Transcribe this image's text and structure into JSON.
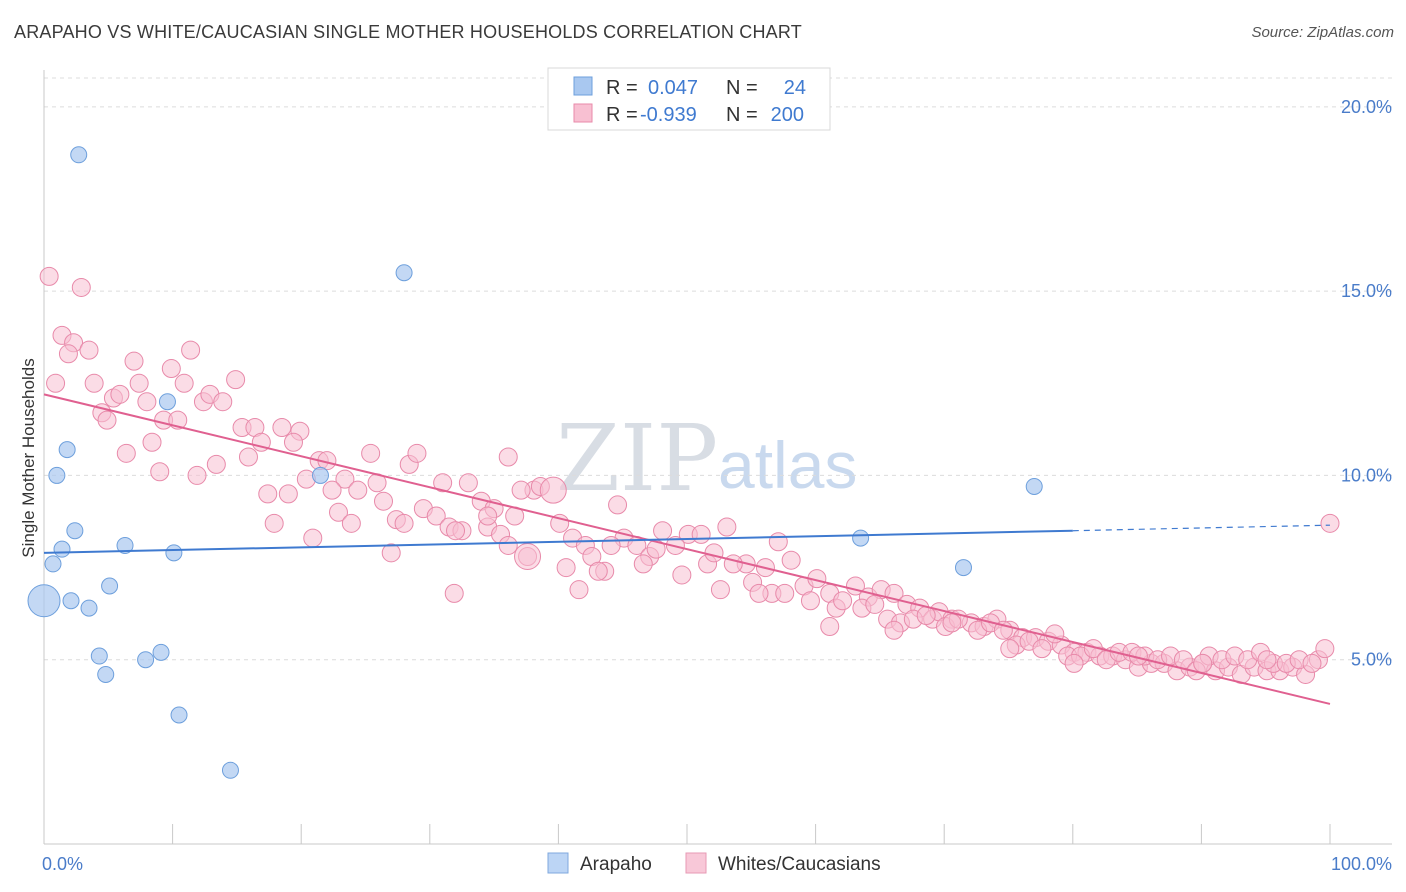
{
  "header": {
    "title": "ARAPAHO VS WHITE/CAUCASIAN SINGLE MOTHER HOUSEHOLDS CORRELATION CHART",
    "source": "Source: ZipAtlas.com"
  },
  "watermark": {
    "zip": "ZIP",
    "atlas": "atlas"
  },
  "legend": {
    "rows": [
      {
        "r_label": "R =",
        "r_value": "0.047",
        "n_label": "N =",
        "n_value": "24",
        "color": "#a9c8f0",
        "stroke": "#6d9fdc"
      },
      {
        "r_label": "R =",
        "r_value": "-0.939",
        "n_label": "N =",
        "n_value": "200",
        "color": "#f8c0d2",
        "stroke": "#e88aaa"
      }
    ]
  },
  "bottom_legend": [
    {
      "label": "Arapaho",
      "color": "#bcd5f5",
      "stroke": "#7fa8de"
    },
    {
      "label": "Whites/Caucasians",
      "color": "#f8c8d8",
      "stroke": "#e79ab4"
    }
  ],
  "chart_data": {
    "type": "scatter",
    "title": "ARAPAHO VS WHITE/CAUCASIAN SINGLE MOTHER HOUSEHOLDS CORRELATION CHART",
    "ylabel": "Single Mother Households",
    "xlabel": "",
    "xlim": [
      0,
      100
    ],
    "ylim": [
      0,
      21
    ],
    "x_tick_labels": [
      "0.0%",
      "100.0%"
    ],
    "y_ticks": [
      {
        "value": 5,
        "label": "5.0%"
      },
      {
        "value": 10,
        "label": "10.0%"
      },
      {
        "value": 15,
        "label": "15.0%"
      },
      {
        "value": 20,
        "label": "20.0%"
      }
    ],
    "grid": true,
    "series": [
      {
        "name": "Arapaho",
        "color": "#a9c8f0",
        "stroke": "#6d9fdc",
        "trend": {
          "x0": 0,
          "y0": 7.9,
          "x1": 80,
          "y1": 8.5,
          "dash_to_x": 100,
          "dash_to_y": 8.65,
          "color": "#3f7ad0"
        },
        "points": [
          [
            2.7,
            18.7,
            8
          ],
          [
            0.0,
            6.6,
            16
          ],
          [
            0.7,
            7.6,
            8
          ],
          [
            1.0,
            10.0,
            8
          ],
          [
            1.4,
            8.0,
            8
          ],
          [
            1.8,
            10.7,
            8
          ],
          [
            2.1,
            6.6,
            8
          ],
          [
            2.4,
            8.5,
            8
          ],
          [
            3.5,
            6.4,
            8
          ],
          [
            4.3,
            5.1,
            8
          ],
          [
            4.8,
            4.6,
            8
          ],
          [
            5.1,
            7.0,
            8
          ],
          [
            6.3,
            8.1,
            8
          ],
          [
            7.9,
            5.0,
            8
          ],
          [
            9.1,
            5.2,
            8
          ],
          [
            9.6,
            12.0,
            8
          ],
          [
            10.1,
            7.9,
            8
          ],
          [
            10.5,
            3.5,
            8
          ],
          [
            14.5,
            2.0,
            8
          ],
          [
            21.5,
            10.0,
            8
          ],
          [
            28.0,
            15.5,
            8
          ],
          [
            63.5,
            8.3,
            8
          ],
          [
            71.5,
            7.5,
            8
          ],
          [
            77.0,
            9.7,
            8
          ]
        ]
      },
      {
        "name": "Whites/Caucasians",
        "color": "#f8c0d2",
        "stroke": "#e88aaa",
        "trend": {
          "x0": 0,
          "y0": 12.2,
          "x1": 100,
          "y1": 3.8,
          "color": "#e06090"
        },
        "points": [
          [
            0.4,
            15.4
          ],
          [
            2.9,
            15.1
          ],
          [
            1.4,
            13.8
          ],
          [
            2.3,
            13.6
          ],
          [
            3.5,
            13.4
          ],
          [
            1.9,
            13.3
          ],
          [
            7.0,
            13.1
          ],
          [
            11.4,
            13.4
          ],
          [
            9.9,
            12.9
          ],
          [
            0.9,
            12.5
          ],
          [
            3.9,
            12.5
          ],
          [
            7.4,
            12.5
          ],
          [
            10.9,
            12.5
          ],
          [
            14.9,
            12.6
          ],
          [
            5.4,
            12.1
          ],
          [
            5.9,
            12.2
          ],
          [
            8.0,
            12.0
          ],
          [
            12.4,
            12.0
          ],
          [
            12.9,
            12.2
          ],
          [
            13.9,
            12.0
          ],
          [
            4.5,
            11.7
          ],
          [
            4.9,
            11.5
          ],
          [
            9.3,
            11.5
          ],
          [
            10.4,
            11.5
          ],
          [
            15.4,
            11.3
          ],
          [
            16.4,
            11.3
          ],
          [
            18.5,
            11.3
          ],
          [
            19.9,
            11.2
          ],
          [
            8.4,
            10.9
          ],
          [
            16.9,
            10.9
          ],
          [
            19.4,
            10.9
          ],
          [
            6.4,
            10.6
          ],
          [
            15.9,
            10.5
          ],
          [
            13.4,
            10.3
          ],
          [
            21.4,
            10.4
          ],
          [
            22.0,
            10.4
          ],
          [
            9.0,
            10.1
          ],
          [
            11.9,
            10.0
          ],
          [
            20.4,
            9.9
          ],
          [
            23.4,
            9.9
          ],
          [
            25.4,
            10.6
          ],
          [
            28.4,
            10.3
          ],
          [
            29.0,
            10.6
          ],
          [
            36.1,
            10.5
          ],
          [
            22.4,
            9.6
          ],
          [
            24.4,
            9.6
          ],
          [
            25.9,
            9.8
          ],
          [
            31.0,
            9.8
          ],
          [
            33.0,
            9.8
          ],
          [
            38.1,
            9.6
          ],
          [
            38.6,
            9.7
          ],
          [
            17.4,
            9.5
          ],
          [
            19.0,
            9.5
          ],
          [
            26.4,
            9.3
          ],
          [
            34.0,
            9.3
          ],
          [
            35.0,
            9.1
          ],
          [
            22.9,
            9.0
          ],
          [
            27.4,
            8.8
          ],
          [
            29.5,
            9.1
          ],
          [
            30.5,
            8.9
          ],
          [
            31.5,
            8.6
          ],
          [
            34.5,
            8.6
          ],
          [
            36.6,
            8.9
          ],
          [
            44.6,
            9.2
          ],
          [
            17.9,
            8.7
          ],
          [
            20.9,
            8.3
          ],
          [
            23.9,
            8.7
          ],
          [
            28.0,
            8.7
          ],
          [
            32.5,
            8.5
          ],
          [
            35.5,
            8.4
          ],
          [
            40.1,
            8.7
          ],
          [
            41.1,
            8.3
          ],
          [
            45.1,
            8.3
          ],
          [
            46.1,
            8.1
          ],
          [
            48.1,
            8.5
          ],
          [
            50.1,
            8.4
          ],
          [
            51.1,
            8.4
          ],
          [
            53.1,
            8.6
          ],
          [
            57.1,
            8.2
          ],
          [
            27.0,
            7.9
          ],
          [
            37.6,
            7.8
          ],
          [
            40.6,
            7.5
          ],
          [
            42.1,
            8.1
          ],
          [
            42.6,
            7.8
          ],
          [
            44.1,
            8.1
          ],
          [
            47.1,
            7.8
          ],
          [
            47.6,
            8.0
          ],
          [
            49.1,
            8.1
          ],
          [
            51.6,
            7.6
          ],
          [
            52.1,
            7.9
          ],
          [
            54.6,
            7.6
          ],
          [
            56.1,
            7.5
          ],
          [
            58.1,
            7.7
          ],
          [
            31.9,
            6.8
          ],
          [
            41.6,
            6.9
          ],
          [
            43.6,
            7.4
          ],
          [
            49.6,
            7.3
          ],
          [
            53.6,
            7.6
          ],
          [
            55.1,
            7.1
          ],
          [
            56.6,
            6.8
          ],
          [
            59.1,
            7.0
          ],
          [
            60.1,
            7.2
          ],
          [
            61.1,
            6.8
          ],
          [
            63.1,
            7.0
          ],
          [
            64.1,
            6.7
          ],
          [
            65.1,
            6.9
          ],
          [
            66.1,
            6.8
          ],
          [
            52.6,
            6.9
          ],
          [
            55.6,
            6.8
          ],
          [
            57.6,
            6.8
          ],
          [
            59.6,
            6.6
          ],
          [
            61.6,
            6.4
          ],
          [
            62.1,
            6.6
          ],
          [
            63.6,
            6.4
          ],
          [
            64.6,
            6.5
          ],
          [
            67.1,
            6.5
          ],
          [
            68.1,
            6.4
          ],
          [
            69.1,
            6.1
          ],
          [
            69.6,
            6.3
          ],
          [
            70.6,
            6.1
          ],
          [
            72.1,
            6.0
          ],
          [
            73.1,
            5.9
          ],
          [
            74.1,
            6.1
          ],
          [
            75.1,
            5.8
          ],
          [
            76.1,
            5.6
          ],
          [
            77.1,
            5.6
          ],
          [
            78.1,
            5.5
          ],
          [
            79.1,
            5.4
          ],
          [
            80.1,
            5.2
          ],
          [
            81.1,
            5.2
          ],
          [
            82.1,
            5.1
          ],
          [
            83.1,
            5.1
          ],
          [
            84.1,
            5.0
          ],
          [
            85.1,
            4.8
          ],
          [
            86.1,
            4.9
          ],
          [
            87.1,
            4.9
          ],
          [
            88.1,
            4.7
          ],
          [
            89.1,
            4.8
          ],
          [
            90.1,
            4.9
          ],
          [
            91.1,
            4.7
          ],
          [
            92.1,
            4.8
          ],
          [
            93.1,
            4.6
          ],
          [
            94.1,
            4.8
          ],
          [
            95.1,
            4.7
          ],
          [
            96.1,
            4.7
          ],
          [
            97.1,
            4.8
          ],
          [
            98.1,
            4.6
          ],
          [
            99.1,
            5.0
          ],
          [
            65.6,
            6.1
          ],
          [
            66.6,
            6.0
          ],
          [
            67.6,
            6.1
          ],
          [
            68.6,
            6.2
          ],
          [
            70.1,
            5.9
          ],
          [
            71.1,
            6.1
          ],
          [
            72.6,
            5.8
          ],
          [
            73.6,
            6.0
          ],
          [
            74.6,
            5.8
          ],
          [
            75.6,
            5.4
          ],
          [
            76.6,
            5.5
          ],
          [
            77.6,
            5.3
          ],
          [
            78.6,
            5.7
          ],
          [
            79.6,
            5.1
          ],
          [
            80.6,
            5.1
          ],
          [
            81.6,
            5.3
          ],
          [
            82.6,
            5.0
          ],
          [
            83.6,
            5.2
          ],
          [
            84.6,
            5.2
          ],
          [
            85.6,
            5.1
          ],
          [
            86.6,
            5.0
          ],
          [
            87.6,
            5.1
          ],
          [
            88.6,
            5.0
          ],
          [
            89.6,
            4.7
          ],
          [
            90.6,
            5.1
          ],
          [
            91.6,
            5.0
          ],
          [
            92.6,
            5.1
          ],
          [
            93.6,
            5.0
          ],
          [
            94.6,
            5.2
          ],
          [
            95.6,
            4.9
          ],
          [
            96.6,
            4.9
          ],
          [
            97.6,
            5.0
          ],
          [
            98.6,
            4.9
          ],
          [
            99.6,
            5.3
          ],
          [
            100.0,
            8.7
          ],
          [
            61.1,
            5.9
          ],
          [
            66.1,
            5.8
          ],
          [
            70.6,
            6.0
          ],
          [
            75.1,
            5.3
          ],
          [
            80.1,
            4.9
          ],
          [
            85.1,
            5.1
          ],
          [
            90.1,
            4.9
          ],
          [
            95.1,
            5.0
          ],
          [
            43.1,
            7.4
          ],
          [
            36.1,
            8.1
          ],
          [
            46.6,
            7.6
          ],
          [
            37.1,
            9.6
          ],
          [
            34.5,
            8.9
          ],
          [
            32.0,
            8.5
          ]
        ],
        "big_points": [
          [
            37.6,
            7.8
          ],
          [
            39.6,
            9.6
          ]
        ]
      }
    ]
  }
}
